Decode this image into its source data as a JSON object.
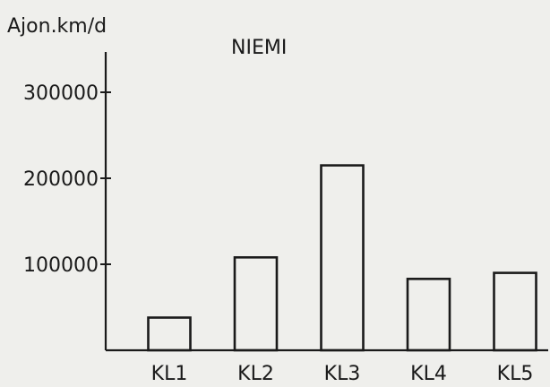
{
  "chart_data": {
    "type": "bar",
    "title": "NIEMI",
    "ylabel": "Ajon.km/d",
    "xlabel": "",
    "categories": [
      "KL1",
      "KL2",
      "KL3",
      "KL4",
      "KL5"
    ],
    "values": [
      38000,
      108000,
      215000,
      83000,
      90000
    ],
    "ylim": [
      0,
      350000
    ],
    "yticks": [
      100000,
      200000,
      300000
    ],
    "ytick_labels": [
      "100000",
      "200000",
      "300000"
    ],
    "grid": false,
    "legend": "none",
    "colors": {
      "ink": "#1a1a1a",
      "background": "#efefec"
    }
  }
}
